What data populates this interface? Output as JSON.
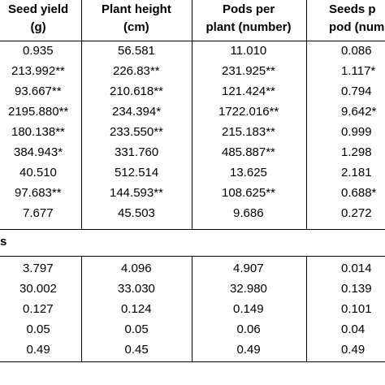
{
  "table": {
    "header": [
      [
        "Seed yield",
        "(g)"
      ],
      [
        "Plant height",
        "(cm)"
      ],
      [
        "Pods per",
        "plant (number)"
      ],
      [
        "Seeds p",
        "pod (num"
      ]
    ],
    "rows": [
      [
        "0.935",
        "56.581",
        "11.010",
        "0.086"
      ],
      [
        "213.992**",
        "226.83**",
        "231.925**",
        "1.117*"
      ],
      [
        "93.667**",
        "210.618**",
        "121.424**",
        "0.794"
      ],
      [
        "2195.880**",
        "234.394*",
        "1722.016**",
        "9.642*"
      ],
      [
        "180.138**",
        "233.550**",
        "215.183**",
        "0.999"
      ],
      [
        "384.943*",
        "331.760",
        "485.887**",
        "1.298"
      ],
      [
        "40.510",
        "512.514",
        "13.625",
        "2.181"
      ],
      [
        "97.683**",
        "144.593**",
        "108.625**",
        "0.688*"
      ],
      [
        "7.677",
        "45.503",
        "9.686",
        "0.272"
      ]
    ],
    "section": "s",
    "rows2": [
      [
        "3.797",
        "4.096",
        "4.907",
        "0.014"
      ],
      [
        "30.002",
        "33.030",
        "32.980",
        "0.139"
      ],
      [
        "0.127",
        "0.124",
        "0.149",
        "0.101"
      ],
      [
        "0.05",
        "0.05",
        "0.06",
        "0.04"
      ],
      [
        "0.49",
        "0.45",
        "0.49",
        "0.49"
      ]
    ]
  }
}
